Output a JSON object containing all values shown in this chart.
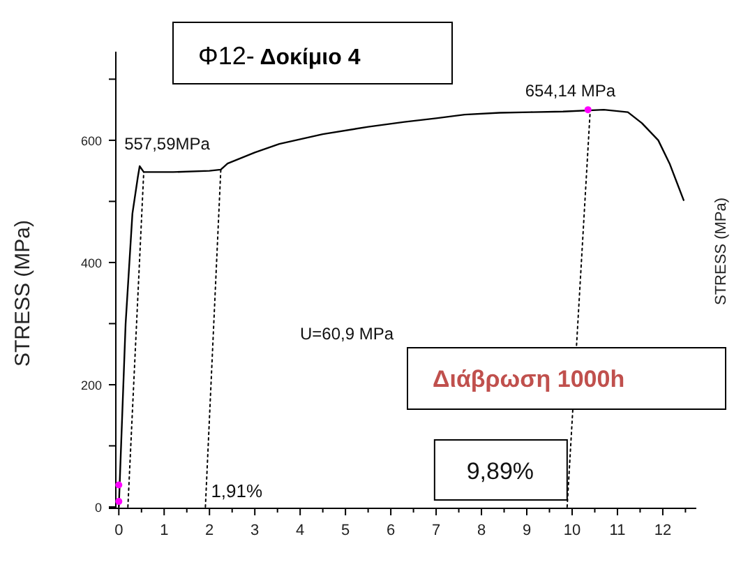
{
  "chart_data": {
    "type": "line",
    "title": "Φ12- Δοκίμιο 4",
    "ylabel": "STRESS (MPa)",
    "y2label": "STRESS (MPa)",
    "xlim": [
      -0.22,
      12.74
    ],
    "ylim": [
      0,
      745
    ],
    "xticks": [
      {
        "value": 0,
        "label": "0"
      },
      {
        "value": 0.5,
        "label": null
      },
      1,
      {
        "value": 1.5,
        "label": null
      },
      2,
      {
        "value": 2.5,
        "label": null
      },
      3,
      {
        "value": 3.5,
        "label": null
      },
      4,
      {
        "value": 4.5,
        "label": null
      },
      5,
      {
        "value": 5.5,
        "label": null
      },
      6,
      {
        "value": 6.5,
        "label": null
      },
      7,
      {
        "value": 7.5,
        "label": null
      },
      8,
      {
        "value": 8.5,
        "label": null
      },
      9,
      {
        "value": 9.5,
        "label": null
      },
      10,
      {
        "value": 10.5,
        "label": null
      },
      11,
      {
        "value": 11.5,
        "label": null
      },
      12,
      {
        "value": 12.5,
        "label": null
      }
    ],
    "yticks": [
      0,
      {
        "value": 100,
        "label": null
      },
      200,
      {
        "value": 300,
        "label": null
      },
      400,
      {
        "value": 500,
        "label": null
      },
      600,
      {
        "value": 700,
        "label": null
      }
    ],
    "series": [
      {
        "color": "#000000",
        "line_style": "solid",
        "x": [
          0,
          0.05,
          0.15,
          0.3,
          0.42,
          0.46,
          0.55,
          1.2,
          2.0,
          2.25,
          2.4,
          3.0,
          3.54,
          4.5,
          5.5,
          6.3,
          7.0,
          7.63,
          8.4,
          9.08,
          9.8,
          10.7,
          11.23,
          11.54,
          11.9,
          12.15,
          12.46
        ],
        "values": [
          0,
          100,
          300,
          480,
          540,
          557.59,
          548,
          548,
          550,
          552,
          562,
          580,
          594,
          610,
          622,
          630,
          636,
          642,
          645,
          646,
          647,
          650,
          646,
          628,
          600,
          562,
          502
        ]
      },
      {
        "color": "#000000",
        "line_style": "dotted",
        "x": [
          0.2,
          0.55
        ],
        "values": [
          0,
          548
        ]
      },
      {
        "color": "#000000",
        "line_style": "dotted",
        "x": [
          1.91,
          2.25
        ],
        "values": [
          0,
          552
        ]
      },
      {
        "color": "#000000",
        "line_style": "dotted",
        "x": [
          9.89,
          10.4
        ],
        "values": [
          0,
          650
        ]
      },
      {
        "type": "scatter",
        "color": "#ff00ff",
        "marker": "circle",
        "x": [
          0,
          0,
          10.35
        ],
        "values": [
          9,
          36,
          650
        ]
      }
    ],
    "annotations": [
      {
        "text": "557,59MPa",
        "x": 0.46,
        "y": 557.59
      },
      {
        "text": "654,14 MPa",
        "x": 10.35,
        "y": 654.14
      },
      {
        "text": "1,91%",
        "x": 1.91,
        "y": 0
      },
      {
        "text": "9,89%",
        "x": 9.89,
        "y": 0
      },
      "U=60,9 MPa",
      "Διάβρωση 1000h"
    ]
  }
}
